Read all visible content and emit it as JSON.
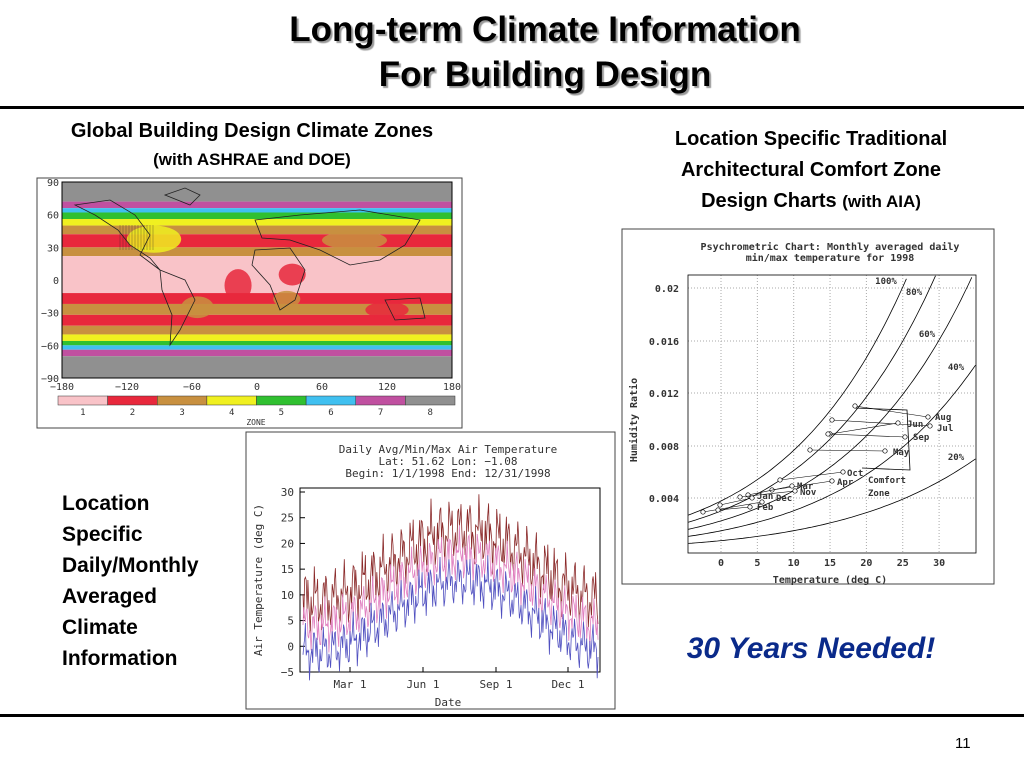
{
  "header": {
    "title_lines": [
      "Long-term Climate Information",
      "For Building Design"
    ]
  },
  "left_panel": {
    "heading": "Global Building Design Climate Zones",
    "subheading": "(with ASHRAE and DOE)",
    "map": {
      "y_ticks": [
        "90",
        "60",
        "30",
        "0",
        "−30",
        "−60",
        "−90"
      ],
      "x_ticks": [
        "−180",
        "−120",
        "−60",
        "0",
        "60",
        "120",
        "180"
      ],
      "zone_label": "ZONE",
      "zones": [
        {
          "label": "1",
          "color": "#f9c3c8"
        },
        {
          "label": "2",
          "color": "#e8283c"
        },
        {
          "label": "3",
          "color": "#c89040"
        },
        {
          "label": "4",
          "color": "#f0f020"
        },
        {
          "label": "5",
          "color": "#30c030"
        },
        {
          "label": "6",
          "color": "#40c0f0"
        },
        {
          "label": "7",
          "color": "#c050a0"
        },
        {
          "label": "8",
          "color": "#909090"
        }
      ]
    }
  },
  "temperature_chart": {
    "title_lines": [
      "Daily Avg/Min/Max Air Temperature",
      "Lat: 51.62 Lon: −1.08",
      "Begin: 1/1/1998  End: 12/31/1998"
    ],
    "y_label": "Air Temperature (deg C)",
    "x_label": "Date",
    "y_ticks": [
      "30",
      "25",
      "20",
      "15",
      "10",
      "5",
      "0",
      "−5"
    ],
    "x_ticks": [
      "Mar 1",
      "Jun 1",
      "Sep 1",
      "Dec 1"
    ]
  },
  "side_text": [
    "Location",
    "Specific",
    "Daily/Monthly",
    "Averaged",
    "Climate",
    "Information"
  ],
  "right_panel": {
    "heading_lines": [
      "Location Specific Traditional",
      "Architectural Comfort Zone",
      "Design Charts"
    ],
    "heading_note": "(with AIA)",
    "psychro": {
      "title_lines": [
        "Psychrometric Chart: Monthly averaged daily",
        "min/max temperature for 1998"
      ],
      "y_label": "Humidity Ratio",
      "x_label": "Temperature (deg C)",
      "y_ticks": [
        "0.02",
        "0.016",
        "0.012",
        "0.008",
        "0.004"
      ],
      "x_ticks": [
        "0",
        "5",
        "10",
        "15",
        "20",
        "25",
        "30"
      ],
      "rh_labels": [
        "100%",
        "80%",
        "60%",
        "40%",
        "20%"
      ],
      "month_labels": [
        "Aug",
        "Jul",
        "Jun",
        "Sep",
        "May",
        "Oct",
        "Apr",
        "Mar",
        "Nov",
        "Jan",
        "Dec",
        "Feb"
      ],
      "comfort_zone": [
        "Comfort",
        "Zone"
      ]
    }
  },
  "callout": "30 Years Needed!",
  "page_number": "11"
}
